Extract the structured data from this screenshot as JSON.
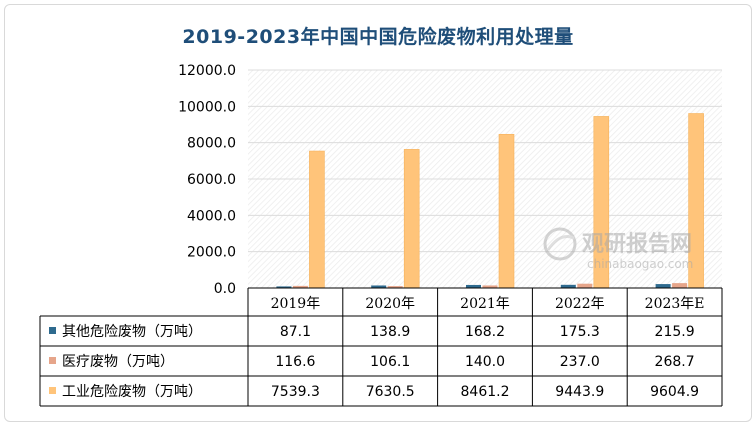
{
  "title": "2019-2023年中国中国危险废物利用处理量",
  "watermark": {
    "brand": "观研报告网",
    "site": "chinabaogao.com"
  },
  "colors": {
    "other": "#2e6a8e",
    "medical": "#e6a58a",
    "industrial": "#ffc47a",
    "title": "#1f4e79"
  },
  "chart_data": {
    "type": "bar",
    "title": "2019-2023年中国中国危险废物利用处理量",
    "categories": [
      "2019年",
      "2020年",
      "2021年",
      "2022年",
      "2023年E"
    ],
    "ylim": [
      0,
      12000
    ],
    "yticks": [
      "0.0",
      "2000.0",
      "4000.0",
      "6000.0",
      "8000.0",
      "10000.0",
      "12000.0"
    ],
    "grid": true,
    "legend": "data-table",
    "series": [
      {
        "name": "其他危险废物（万吨）",
        "values": [
          87.1,
          138.9,
          168.2,
          175.3,
          215.9
        ],
        "labels": [
          "87.1",
          "138.9",
          "168.2",
          "175.3",
          "215.9"
        ]
      },
      {
        "name": "医疗废物（万吨）",
        "values": [
          116.6,
          106.1,
          140.0,
          237.0,
          268.7
        ],
        "labels": [
          "116.6",
          "106.1",
          "140.0",
          "237.0",
          "268.7"
        ]
      },
      {
        "name": "工业危险废物（万吨）",
        "values": [
          7539.3,
          7630.5,
          8461.2,
          9443.9,
          9604.9
        ],
        "labels": [
          "7539.3",
          "7630.5",
          "8461.2",
          "9443.9",
          "9604.9"
        ]
      }
    ]
  }
}
